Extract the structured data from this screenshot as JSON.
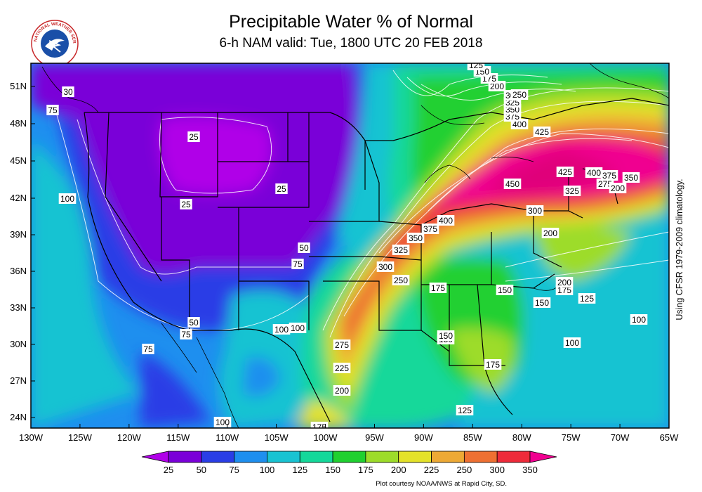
{
  "header": {
    "title": "Precipitable Water % of Normal",
    "subtitle": "6-h NAM valid: Tue, 1800 UTC 20 FEB 2018"
  },
  "logo": {
    "text": "NATIONAL WEATHER SERVICE",
    "icon": "nws-logo-icon"
  },
  "axes": {
    "lat_labels": [
      "51N",
      "48N",
      "45N",
      "42N",
      "39N",
      "36N",
      "33N",
      "30N",
      "27N",
      "24N"
    ],
    "lon_labels": [
      "130W",
      "125W",
      "120W",
      "115W",
      "110W",
      "105W",
      "100W",
      "95W",
      "90W",
      "85W",
      "80W",
      "75W",
      "70W",
      "65W"
    ]
  },
  "colorbar": {
    "labels": [
      "25",
      "50",
      "75",
      "100",
      "125",
      "150",
      "175",
      "200",
      "225",
      "250",
      "300",
      "350"
    ],
    "colors": [
      "#b000e8",
      "#7a00d8",
      "#2a3ee6",
      "#1e8fef",
      "#19c3d2",
      "#14d89a",
      "#20d030",
      "#9ddc2a",
      "#e4e22a",
      "#eda935",
      "#ee7032",
      "#ee2b3a",
      "#f00090"
    ]
  },
  "contour_labels": [
    {
      "text": "75"
    },
    {
      "text": "30"
    },
    {
      "text": "100"
    },
    {
      "text": "25"
    },
    {
      "text": "25"
    },
    {
      "text": "25"
    },
    {
      "text": "50"
    },
    {
      "text": "75"
    },
    {
      "text": "50"
    },
    {
      "text": "75"
    },
    {
      "text": "75"
    },
    {
      "text": "100"
    },
    {
      "text": "100"
    },
    {
      "text": "100"
    },
    {
      "text": "275"
    },
    {
      "text": "225"
    },
    {
      "text": "200"
    },
    {
      "text": "175"
    },
    {
      "text": "300"
    },
    {
      "text": "250"
    },
    {
      "text": "325"
    },
    {
      "text": "350"
    },
    {
      "text": "375"
    },
    {
      "text": "400"
    },
    {
      "text": "175"
    },
    {
      "text": "150"
    },
    {
      "text": "150"
    },
    {
      "text": "175"
    },
    {
      "text": "125"
    },
    {
      "text": "150"
    },
    {
      "text": "150"
    },
    {
      "text": "175"
    },
    {
      "text": "200"
    },
    {
      "text": "125"
    },
    {
      "text": "100"
    },
    {
      "text": "100"
    },
    {
      "text": "200"
    },
    {
      "text": "300"
    },
    {
      "text": "325"
    },
    {
      "text": "450"
    },
    {
      "text": "425"
    },
    {
      "text": "425"
    },
    {
      "text": "400"
    },
    {
      "text": "375"
    },
    {
      "text": "350"
    },
    {
      "text": "325"
    },
    {
      "text": "300"
    },
    {
      "text": "250"
    },
    {
      "text": "200"
    },
    {
      "text": "175"
    },
    {
      "text": "150"
    },
    {
      "text": "125"
    },
    {
      "text": "400"
    },
    {
      "text": "375"
    },
    {
      "text": "275"
    },
    {
      "text": "200"
    },
    {
      "text": "350"
    }
  ],
  "side_note": "Using CFSR 1979-2009 climatology.",
  "credit": "Plot courtesy NOAA/NWS at Rapid City, SD."
}
